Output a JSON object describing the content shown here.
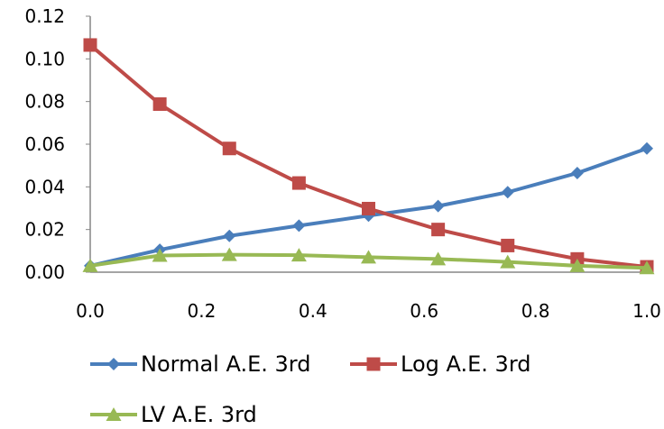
{
  "chart_data": {
    "type": "line",
    "title": "",
    "xlabel": "",
    "ylabel": "",
    "x": [
      0.0,
      0.125,
      0.25,
      0.375,
      0.5,
      0.625,
      0.75,
      0.875,
      1.0
    ],
    "xlim": [
      0.0,
      1.0
    ],
    "ylim": [
      0.0,
      0.12
    ],
    "x_ticks": [
      "0.0",
      "0.2",
      "0.4",
      "0.6",
      "0.8",
      "1.0"
    ],
    "y_ticks": [
      "0.00",
      "0.02",
      "0.04",
      "0.06",
      "0.08",
      "0.10",
      "0.12"
    ],
    "grid": false,
    "legend_position": "bottom",
    "series": [
      {
        "name": "Normal A.E. 3rd",
        "color": "#4a7ebb",
        "marker": "diamond",
        "values": [
          0.003,
          0.0105,
          0.017,
          0.0218,
          0.0265,
          0.031,
          0.0375,
          0.0465,
          0.058
        ]
      },
      {
        "name": "Log A.E. 3rd",
        "color": "#be4b48",
        "marker": "square",
        "values": [
          0.1065,
          0.0788,
          0.058,
          0.0418,
          0.0298,
          0.02,
          0.0125,
          0.0062,
          0.0025
        ]
      },
      {
        "name": "LV A.E. 3rd",
        "color": "#98b954",
        "marker": "triangle",
        "values": [
          0.003,
          0.0078,
          0.0082,
          0.008,
          0.007,
          0.0062,
          0.0048,
          0.003,
          0.002
        ]
      }
    ]
  }
}
